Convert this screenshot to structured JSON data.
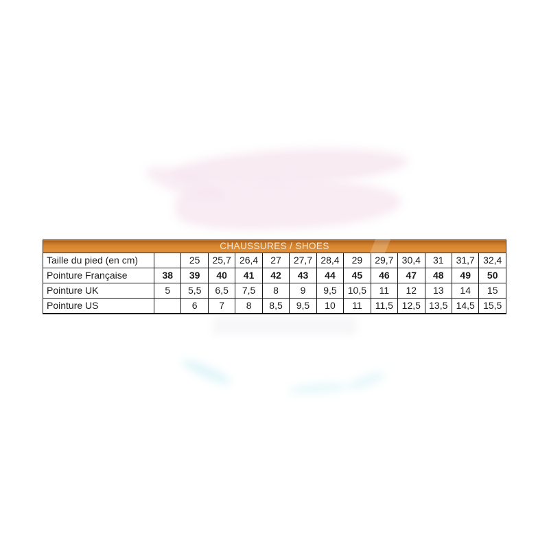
{
  "page": {
    "background_color": "#ffffff",
    "accent_color": "#dc8a32"
  },
  "table": {
    "header_title": "CHAUSSURES / SHOES",
    "header_text_color": "#f6e9d3",
    "header_background_color": "#dc8a32",
    "border_color": "#161616",
    "rows": [
      {
        "label": "Taille du pied (en cm)",
        "bold_values": false,
        "values": [
          "",
          "25",
          "25,7",
          "26,4",
          "27",
          "27,7",
          "28,4",
          "29",
          "29,7",
          "30,4",
          "31",
          "31,7",
          "32,4"
        ]
      },
      {
        "label": "Pointure Française",
        "bold_values": true,
        "values": [
          "38",
          "39",
          "40",
          "41",
          "42",
          "43",
          "44",
          "45",
          "46",
          "47",
          "48",
          "49",
          "50"
        ]
      },
      {
        "label": "Pointure UK",
        "bold_values": false,
        "values": [
          "5",
          "5,5",
          "6,5",
          "7,5",
          "8",
          "9",
          "9,5",
          "10,5",
          "11",
          "12",
          "13",
          "14",
          "15"
        ]
      },
      {
        "label": "Pointure US",
        "bold_values": false,
        "values": [
          "",
          "6",
          "7",
          "8",
          "8,5",
          "9,5",
          "10",
          "11",
          "11,5",
          "12,5",
          "13,5",
          "14,5",
          "15,5"
        ]
      }
    ]
  }
}
